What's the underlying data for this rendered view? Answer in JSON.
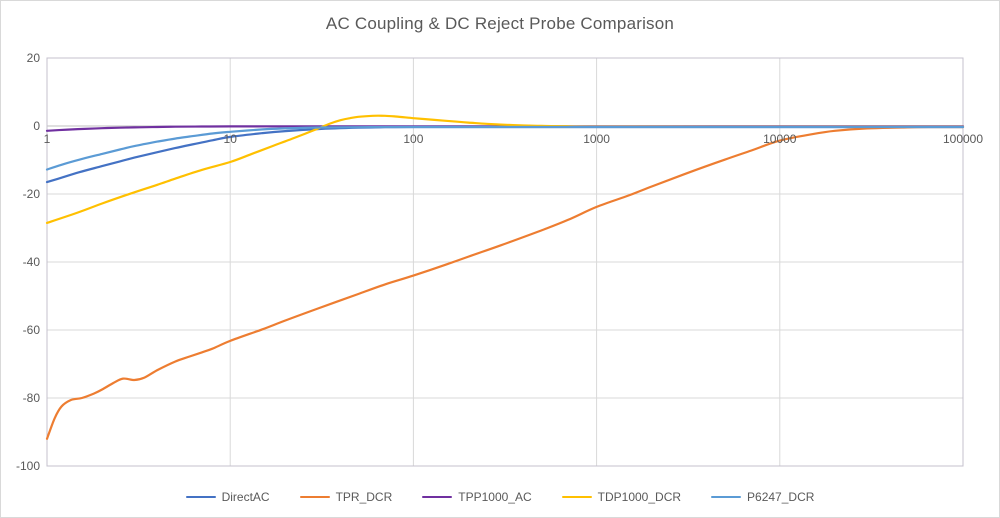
{
  "chart": {
    "title": "AC Coupling & DC Reject Probe Comparison",
    "title_color": "#595959",
    "label_color": "#595959",
    "gridline_color": "#D9D9D9",
    "axis_line_color": "#BFBFBF",
    "plot_border_color": "#C4C0CE",
    "background": "#FFFFFF"
  },
  "chart_data": {
    "type": "line",
    "title": "AC Coupling & DC Reject Probe Comparison",
    "xlabel": "",
    "ylabel": "",
    "grid": true,
    "legend_position": "bottom",
    "x_axis": {
      "scale": "log",
      "min": 1,
      "max": 100000,
      "ticks": [
        1,
        10,
        100,
        1000,
        10000,
        100000
      ],
      "tick_labels": [
        "1",
        "10",
        "100",
        "1000",
        "10000",
        "100000"
      ],
      "labels_at_value": 0
    },
    "y_axis": {
      "min": -100,
      "max": 20,
      "tick_step": 20,
      "ticks": [
        20,
        0,
        -20,
        -40,
        -60,
        -80,
        -100
      ],
      "tick_labels": [
        "20",
        "0",
        "-20",
        "-40",
        "-60",
        "-80",
        "-100"
      ]
    },
    "series": [
      {
        "name": "DirectAC",
        "color": "#4472C4",
        "points": [
          [
            1,
            -16.5
          ],
          [
            1.2,
            -15.2
          ],
          [
            1.5,
            -13.6
          ],
          [
            2,
            -11.8
          ],
          [
            2.5,
            -10.4
          ],
          [
            3,
            -9.3
          ],
          [
            4,
            -7.7
          ],
          [
            5,
            -6.5
          ],
          [
            6,
            -5.6
          ],
          [
            8,
            -4.2
          ],
          [
            10,
            -3.2
          ],
          [
            15,
            -2.1
          ],
          [
            20,
            -1.5
          ],
          [
            30,
            -0.9
          ],
          [
            50,
            -0.5
          ],
          [
            70,
            -0.35
          ],
          [
            100,
            -0.3
          ],
          [
            300,
            -0.3
          ],
          [
            1000,
            -0.3
          ],
          [
            10000,
            -0.3
          ],
          [
            100000,
            -0.3
          ]
        ]
      },
      {
        "name": "TPR_DCR",
        "color": "#ED7D31",
        "points": [
          [
            1,
            -92
          ],
          [
            1.1,
            -86
          ],
          [
            1.2,
            -82.5
          ],
          [
            1.35,
            -80.6
          ],
          [
            1.55,
            -80
          ],
          [
            1.8,
            -78.7
          ],
          [
            2,
            -77.5
          ],
          [
            2.3,
            -75.6
          ],
          [
            2.6,
            -74.3
          ],
          [
            3,
            -74.7
          ],
          [
            3.4,
            -74
          ],
          [
            4,
            -71.8
          ],
          [
            5,
            -69.3
          ],
          [
            6,
            -67.8
          ],
          [
            7,
            -66.6
          ],
          [
            8,
            -65.5
          ],
          [
            10,
            -63.2
          ],
          [
            15,
            -59.8
          ],
          [
            20,
            -57.2
          ],
          [
            30,
            -53.7
          ],
          [
            50,
            -49.4
          ],
          [
            70,
            -46.6
          ],
          [
            100,
            -44
          ],
          [
            150,
            -40.8
          ],
          [
            200,
            -38.4
          ],
          [
            300,
            -35.1
          ],
          [
            500,
            -30.7
          ],
          [
            700,
            -27.6
          ],
          [
            1000,
            -23.8
          ],
          [
            1500,
            -20.4
          ],
          [
            2000,
            -17.8
          ],
          [
            3000,
            -14.2
          ],
          [
            5000,
            -9.9
          ],
          [
            7000,
            -7.2
          ],
          [
            10000,
            -4.3
          ],
          [
            15000,
            -2.4
          ],
          [
            20000,
            -1.4
          ],
          [
            30000,
            -0.7
          ],
          [
            50000,
            -0.4
          ],
          [
            70000,
            -0.3
          ],
          [
            100000,
            -0.3
          ]
        ]
      },
      {
        "name": "TPP1000_AC",
        "color": "#7030A0",
        "points": [
          [
            1,
            -1.4
          ],
          [
            1.3,
            -1.05
          ],
          [
            1.6,
            -0.85
          ],
          [
            2,
            -0.65
          ],
          [
            2.5,
            -0.5
          ],
          [
            3,
            -0.4
          ],
          [
            4,
            -0.28
          ],
          [
            5,
            -0.22
          ],
          [
            7,
            -0.15
          ],
          [
            10,
            -0.12
          ],
          [
            20,
            -0.1
          ],
          [
            100,
            -0.1
          ],
          [
            1000,
            -0.1
          ],
          [
            10000,
            -0.1
          ],
          [
            100000,
            -0.1
          ]
        ]
      },
      {
        "name": "TDP1000_DCR",
        "color": "#FFC000",
        "points": [
          [
            1,
            -28.5
          ],
          [
            1.5,
            -25.3
          ],
          [
            2,
            -22.8
          ],
          [
            3,
            -19.5
          ],
          [
            4,
            -17.3
          ],
          [
            5,
            -15.5
          ],
          [
            7,
            -12.9
          ],
          [
            10,
            -10.6
          ],
          [
            13,
            -8.3
          ],
          [
            17,
            -5.9
          ],
          [
            20,
            -4.5
          ],
          [
            25,
            -2.5
          ],
          [
            30,
            -0.8
          ],
          [
            35,
            0.7
          ],
          [
            40,
            1.7
          ],
          [
            45,
            2.3
          ],
          [
            50,
            2.7
          ],
          [
            60,
            3.0
          ],
          [
            70,
            3.0
          ],
          [
            80,
            2.8
          ],
          [
            100,
            2.3
          ],
          [
            130,
            1.8
          ],
          [
            160,
            1.4
          ],
          [
            200,
            1.0
          ],
          [
            250,
            0.65
          ],
          [
            300,
            0.4
          ],
          [
            400,
            0.15
          ],
          [
            500,
            0.02
          ],
          [
            700,
            -0.1
          ],
          [
            1000,
            -0.2
          ],
          [
            10000,
            -0.25
          ],
          [
            100000,
            -0.25
          ]
        ]
      },
      {
        "name": "P6247_DCR",
        "color": "#5B9BD5",
        "points": [
          [
            1,
            -12.8
          ],
          [
            1.2,
            -11.4
          ],
          [
            1.5,
            -9.9
          ],
          [
            2,
            -8.2
          ],
          [
            2.5,
            -6.9
          ],
          [
            3,
            -5.9
          ],
          [
            4,
            -4.6
          ],
          [
            5,
            -3.7
          ],
          [
            6,
            -3.1
          ],
          [
            8,
            -2.2
          ],
          [
            10,
            -1.7
          ],
          [
            15,
            -1.0
          ],
          [
            20,
            -0.7
          ],
          [
            30,
            -0.45
          ],
          [
            50,
            -0.35
          ],
          [
            100,
            -0.3
          ],
          [
            1000,
            -0.3
          ],
          [
            10000,
            -0.3
          ],
          [
            100000,
            -0.3
          ]
        ]
      }
    ]
  },
  "legend": {
    "items": [
      "DirectAC",
      "TPR_DCR",
      "TPP1000_AC",
      "TDP1000_DCR",
      "P6247_DCR"
    ]
  }
}
